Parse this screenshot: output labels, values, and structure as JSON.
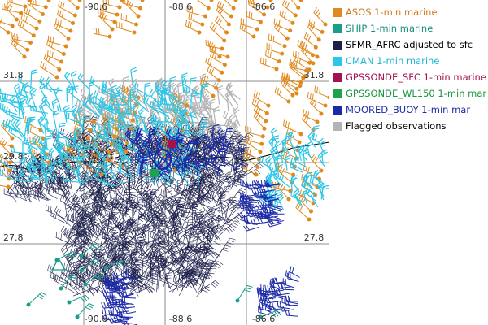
{
  "map": {
    "lon_labels_top": [
      "-90.6",
      "-88.6",
      "-86.6"
    ],
    "lon_labels_bottom": [
      "-90.6",
      "-88.6",
      "-86.6"
    ],
    "lat_labels_left": [
      "31.8",
      "29.8",
      "27.8"
    ],
    "lat_labels_right": [
      "31.8",
      "27.8"
    ],
    "colors": {
      "asos": "#e08a1e",
      "ship": "#1a9e8c",
      "sfmr": "#1b1f4a",
      "cman": "#2cc6e6",
      "gpssonde_sfc": "#a3124e",
      "gpssonde_wl150": "#1fa34a",
      "moored_buoy": "#1c2aa8",
      "flagged": "#b4b4b4",
      "grid": "#8c8c8c",
      "coast": "#000000"
    }
  },
  "legend": {
    "items": [
      {
        "label": "ASOS 1-min marine",
        "color": "#e08a1e",
        "text_color": "#d2781a"
      },
      {
        "label": "SHIP 1-min marine",
        "color": "#1a9e8c",
        "text_color": "#15907f"
      },
      {
        "label": "SFMR_AFRC adjusted to sfc",
        "color": "#1b1f4a",
        "text_color": "#000000"
      },
      {
        "label": "CMAN 1-min marine",
        "color": "#2cc6e6",
        "text_color": "#1fb8d8"
      },
      {
        "label": "GPSSONDE_SFC 1-min marine",
        "color": "#a3124e",
        "text_color": "#a3124e"
      },
      {
        "label": "GPSSONDE_WL150 1-min mar",
        "color": "#1fa34a",
        "text_color": "#18963f"
      },
      {
        "label": "MOORED_BUOY 1-min mar",
        "color": "#1c2aa8",
        "text_color": "#1c2aa8"
      },
      {
        "label": "Flagged observations",
        "color": "#b4b4b4",
        "text_color": "#000000"
      }
    ]
  }
}
